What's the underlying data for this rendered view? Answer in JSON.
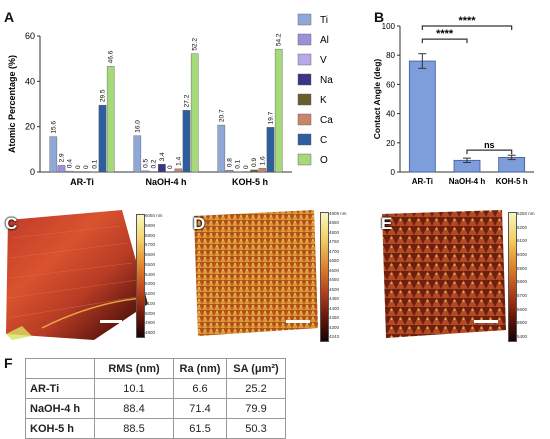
{
  "panels": {
    "a": "A",
    "b": "B",
    "c": "C",
    "d": "D",
    "e": "E",
    "f": "F"
  },
  "chart_data": [
    {
      "type": "bar",
      "ylabel": "Atomic Percentage (%)",
      "categories": [
        "AR-Ti",
        "NaOH-4 h",
        "KOH-5 h"
      ],
      "ylim": [
        0,
        60
      ],
      "yticks": [
        0,
        20,
        40,
        60
      ],
      "legend_position": "right",
      "series": [
        {
          "name": "Ti",
          "color": "#8FA8D8",
          "values": [
            15.6,
            16.0,
            20.7
          ],
          "labels": [
            "15.6",
            "16.0",
            "20.7"
          ]
        },
        {
          "name": "Al",
          "color": "#9E8FD9",
          "values": [
            2.9,
            0.5,
            0.8
          ],
          "labels": [
            "2.9",
            "0.5",
            "0.8"
          ]
        },
        {
          "name": "V",
          "color": "#B9A8E6",
          "values": [
            0.4,
            0.2,
            0.1
          ],
          "labels": [
            "0.4",
            "0.2",
            "0.1"
          ]
        },
        {
          "name": "Na",
          "color": "#3A3585",
          "values": [
            0,
            3.4,
            0
          ],
          "labels": [
            "0",
            "3.4",
            "0"
          ]
        },
        {
          "name": "K",
          "color": "#6B5E2E",
          "values": [
            0,
            0,
            0.9
          ],
          "labels": [
            "0",
            "0",
            "0.9"
          ]
        },
        {
          "name": "Ca",
          "color": "#C8856A",
          "values": [
            0.1,
            1.4,
            1.6
          ],
          "labels": [
            "0.1",
            "1.4",
            "1.6"
          ]
        },
        {
          "name": "C",
          "color": "#2E5E9E",
          "values": [
            29.5,
            27.2,
            19.7
          ],
          "labels": [
            "29.5",
            "27.2",
            "19.7"
          ]
        },
        {
          "name": "O",
          "color": "#A6D97A",
          "values": [
            46.6,
            52.2,
            54.2
          ],
          "labels": [
            "46.6",
            "52.2",
            "54.2"
          ]
        }
      ]
    },
    {
      "type": "bar",
      "ylabel": "Contact Angle (deg)",
      "categories": [
        "AR-Ti",
        "NaOH-4 h",
        "KOH-5 h"
      ],
      "values": [
        76,
        8,
        10
      ],
      "errors": [
        5,
        1.5,
        1.5
      ],
      "ylim": [
        0,
        100
      ],
      "yticks": [
        0,
        20,
        40,
        60,
        80,
        100
      ],
      "color": "#7E9DDB",
      "significance": [
        {
          "from": 0,
          "to": 2,
          "label": "****"
        },
        {
          "from": 0,
          "to": 1,
          "label": "****"
        },
        {
          "from": 1,
          "to": 2,
          "label": "ns"
        }
      ]
    }
  ],
  "afm": [
    {
      "panel": "C",
      "scale_ticks": [
        "6050 nm",
        "5900",
        "5800",
        "5700",
        "5600",
        "5500",
        "5400",
        "5300",
        "5200",
        "5100",
        "5000",
        "4900",
        "4800"
      ]
    },
    {
      "panel": "D",
      "scale_ticks": [
        "4909 nm",
        "4850",
        "4800",
        "4750",
        "4700",
        "4650",
        "4600",
        "4550",
        "4500",
        "4450",
        "4400",
        "4350",
        "4300",
        "4243"
      ]
    },
    {
      "panel": "E",
      "scale_ticks": [
        "6250 nm",
        "6200",
        "6100",
        "6000",
        "5900",
        "5800",
        "5700",
        "5600",
        "5500",
        "5400"
      ]
    }
  ],
  "table": {
    "headers": [
      "",
      "RMS (nm)",
      "Ra (nm)",
      "SA (μm²)"
    ],
    "rows": [
      {
        "label": "AR-Ti",
        "rms": "10.1",
        "ra": "6.6",
        "sa": "25.2"
      },
      {
        "label": "NaOH-4 h",
        "rms": "88.4",
        "ra": "71.4",
        "sa": "79.9"
      },
      {
        "label": "KOH-5 h",
        "rms": "88.5",
        "ra": "61.5",
        "sa": "50.3"
      }
    ]
  }
}
